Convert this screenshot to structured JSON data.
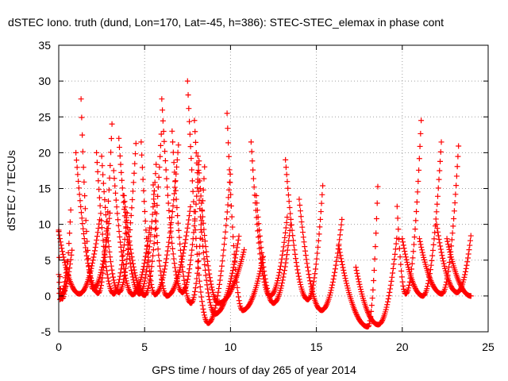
{
  "chart_data": {
    "type": "scatter",
    "title": "dSTEC Iono. truth (dund, Lon=170, Lat=-45, h=386): STEC-STEC_elemax in phase cont",
    "xlabel": "GPS time / hours of day 265 of year 2014",
    "ylabel": "dSTEC  / TECUs",
    "xlim": [
      0,
      25
    ],
    "ylim": [
      -5,
      35
    ],
    "xticks": [
      0,
      5,
      10,
      15,
      20,
      25
    ],
    "yticks": [
      -5,
      0,
      5,
      10,
      15,
      20,
      25,
      30,
      35
    ],
    "grid": true,
    "marker": "+",
    "series_color": "#ff0000",
    "arcs": [
      {
        "t0": 0.0,
        "t1": 0.5,
        "min_t": 0.05,
        "min_v": -0.5,
        "start_v": 9.2,
        "end_v": 5.0
      },
      {
        "t0": 0.0,
        "t1": 0.8,
        "min_t": 0.15,
        "min_v": 0.2,
        "start_v": 9.0,
        "end_v": 7.0
      },
      {
        "t0": 0.0,
        "t1": 0.7,
        "min_t": 0.2,
        "min_v": -0.4,
        "start_v": 3.0,
        "end_v": 12.0
      },
      {
        "t0": 0.0,
        "t1": 2.4,
        "min_t": 1.2,
        "min_v": 0.3,
        "start_v": 9.0,
        "end_v": 11.0
      },
      {
        "t0": 1.0,
        "t1": 3.1,
        "min_t": 2.3,
        "min_v": 0.4,
        "start_v": 20.0,
        "end_v": 24.0
      },
      {
        "t0": 1.3,
        "t1": 3.0,
        "min_t": 2.0,
        "min_v": 1.0,
        "start_v": 27.5,
        "end_v": 12.0
      },
      {
        "t0": 2.2,
        "t1": 4.0,
        "min_t": 3.2,
        "min_v": 0.3,
        "start_v": 20.0,
        "end_v": 12.0
      },
      {
        "t0": 2.5,
        "t1": 4.5,
        "min_t": 3.5,
        "min_v": 0.5,
        "start_v": 19.5,
        "end_v": 21.5
      },
      {
        "t0": 3.2,
        "t1": 5.3,
        "min_t": 4.3,
        "min_v": 0.2,
        "start_v": 17.5,
        "end_v": 9.5
      },
      {
        "t0": 3.5,
        "t1": 5.7,
        "min_t": 4.7,
        "min_v": 0.3,
        "start_v": 22.0,
        "end_v": 19.5
      },
      {
        "t0": 3.8,
        "t1": 6.0,
        "min_t": 5.0,
        "min_v": 0.1,
        "start_v": 14.0,
        "end_v": 24.0
      },
      {
        "t0": 4.8,
        "t1": 7.0,
        "min_t": 5.6,
        "min_v": 0.2,
        "start_v": 21.5,
        "end_v": 22.0
      },
      {
        "t0": 5.5,
        "t1": 7.7,
        "min_t": 6.3,
        "min_v": 0.0,
        "start_v": 15.5,
        "end_v": 13.0
      },
      {
        "t0": 6.0,
        "t1": 8.2,
        "min_t": 7.2,
        "min_v": 0.5,
        "start_v": 27.5,
        "end_v": 20.0
      },
      {
        "t0": 6.6,
        "t1": 8.5,
        "min_t": 7.7,
        "min_v": -1.0,
        "start_v": 23.0,
        "end_v": 18.5
      },
      {
        "t0": 7.5,
        "t1": 10.0,
        "min_t": 8.7,
        "min_v": -3.8,
        "start_v": 30.0,
        "end_v": 17.5
      },
      {
        "t0": 7.9,
        "t1": 10.5,
        "min_t": 9.1,
        "min_v": -2.5,
        "start_v": 24.5,
        "end_v": 8.5
      },
      {
        "t0": 8.1,
        "t1": 10.8,
        "min_t": 9.3,
        "min_v": -1.0,
        "start_v": 19.5,
        "end_v": 6.5
      },
      {
        "t0": 9.8,
        "t1": 11.9,
        "min_t": 10.7,
        "min_v": -2.0,
        "start_v": 25.5,
        "end_v": 5.5
      },
      {
        "t0": 11.2,
        "t1": 13.3,
        "min_t": 12.3,
        "min_v": 0.0,
        "start_v": 21.5,
        "end_v": 11.0
      },
      {
        "t0": 11.5,
        "t1": 13.5,
        "min_t": 12.5,
        "min_v": -1.0,
        "start_v": 14.0,
        "end_v": 10.0
      },
      {
        "t0": 13.2,
        "t1": 15.4,
        "min_t": 14.5,
        "min_v": -0.5,
        "start_v": 19.0,
        "end_v": 16.5
      },
      {
        "t0": 14.0,
        "t1": 16.5,
        "min_t": 15.3,
        "min_v": -2.0,
        "start_v": 13.5,
        "end_v": 11.0
      },
      {
        "t0": 16.3,
        "t1": 18.6,
        "min_t": 18.0,
        "min_v": -4.3,
        "start_v": 7.0,
        "end_v": 17.0
      },
      {
        "t0": 17.3,
        "t1": 19.7,
        "min_t": 18.6,
        "min_v": -4.0,
        "start_v": 4.0,
        "end_v": 8.5
      },
      {
        "t0": 19.7,
        "t1": 21.1,
        "min_t": 20.2,
        "min_v": 0.3,
        "start_v": 12.5,
        "end_v": 24.5
      },
      {
        "t0": 20.0,
        "t1": 22.3,
        "min_t": 21.2,
        "min_v": 0.0,
        "start_v": 8.0,
        "end_v": 22.5
      },
      {
        "t0": 21.0,
        "t1": 23.3,
        "min_t": 22.3,
        "min_v": 0.3,
        "start_v": 8.0,
        "end_v": 22.0
      },
      {
        "t0": 22.0,
        "t1": 24.0,
        "min_t": 23.2,
        "min_v": 0.5,
        "start_v": 10.0,
        "end_v": 8.5
      },
      {
        "t0": 22.6,
        "t1": 24.0,
        "min_t": 24.0,
        "min_v": 0.0,
        "start_v": 8.0,
        "end_v": 0.0
      }
    ]
  }
}
